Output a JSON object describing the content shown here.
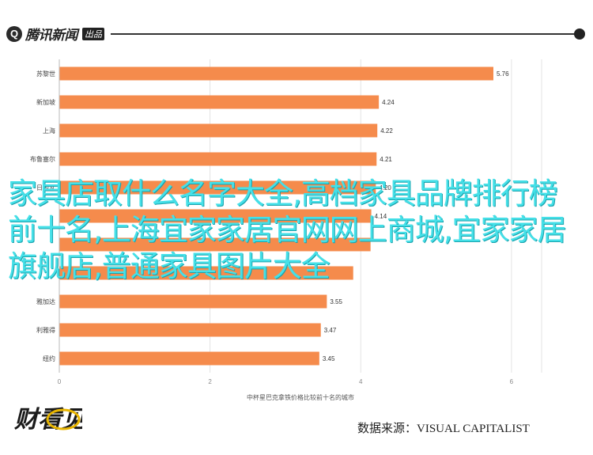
{
  "header": {
    "logo_glyph": "Q",
    "logo_text": "腾讯新闻",
    "logo_badge": "出品"
  },
  "overlay_text": "家具店取什么名字大全,高档家具品牌排行榜前十名,上海宜家家居官网网上商城,宜家家居旗舰店,普通家具图片大全",
  "brand_text": "财看见",
  "source_text": "数据来源：VISUAL CAPITALIST",
  "colors": {
    "bar": "#f58b4c",
    "overlay": "#45e0e8"
  },
  "chart_data": {
    "type": "bar",
    "orientation": "horizontal",
    "categories": [
      "苏黎世",
      "新加坡",
      "上海",
      "布鲁塞尔",
      "日内瓦",
      "",
      "",
      "",
      "雅加达",
      "利雅得",
      "纽约"
    ],
    "values": [
      5.76,
      4.24,
      4.22,
      4.21,
      4.2,
      4.14,
      4.13,
      3.9,
      3.55,
      3.47,
      3.45
    ],
    "value_labels": [
      "5.76",
      "4.24",
      "4.22",
      "4.21",
      "4.20",
      "4.14",
      "",
      "",
      "3.55",
      "3.47",
      "3.45"
    ],
    "x_ticks": [
      0,
      2,
      4,
      6
    ],
    "xlim": [
      0,
      6.4
    ],
    "xlabel": "中杯星巴克拿铁价格比较前十名的城市",
    "grid": true
  }
}
